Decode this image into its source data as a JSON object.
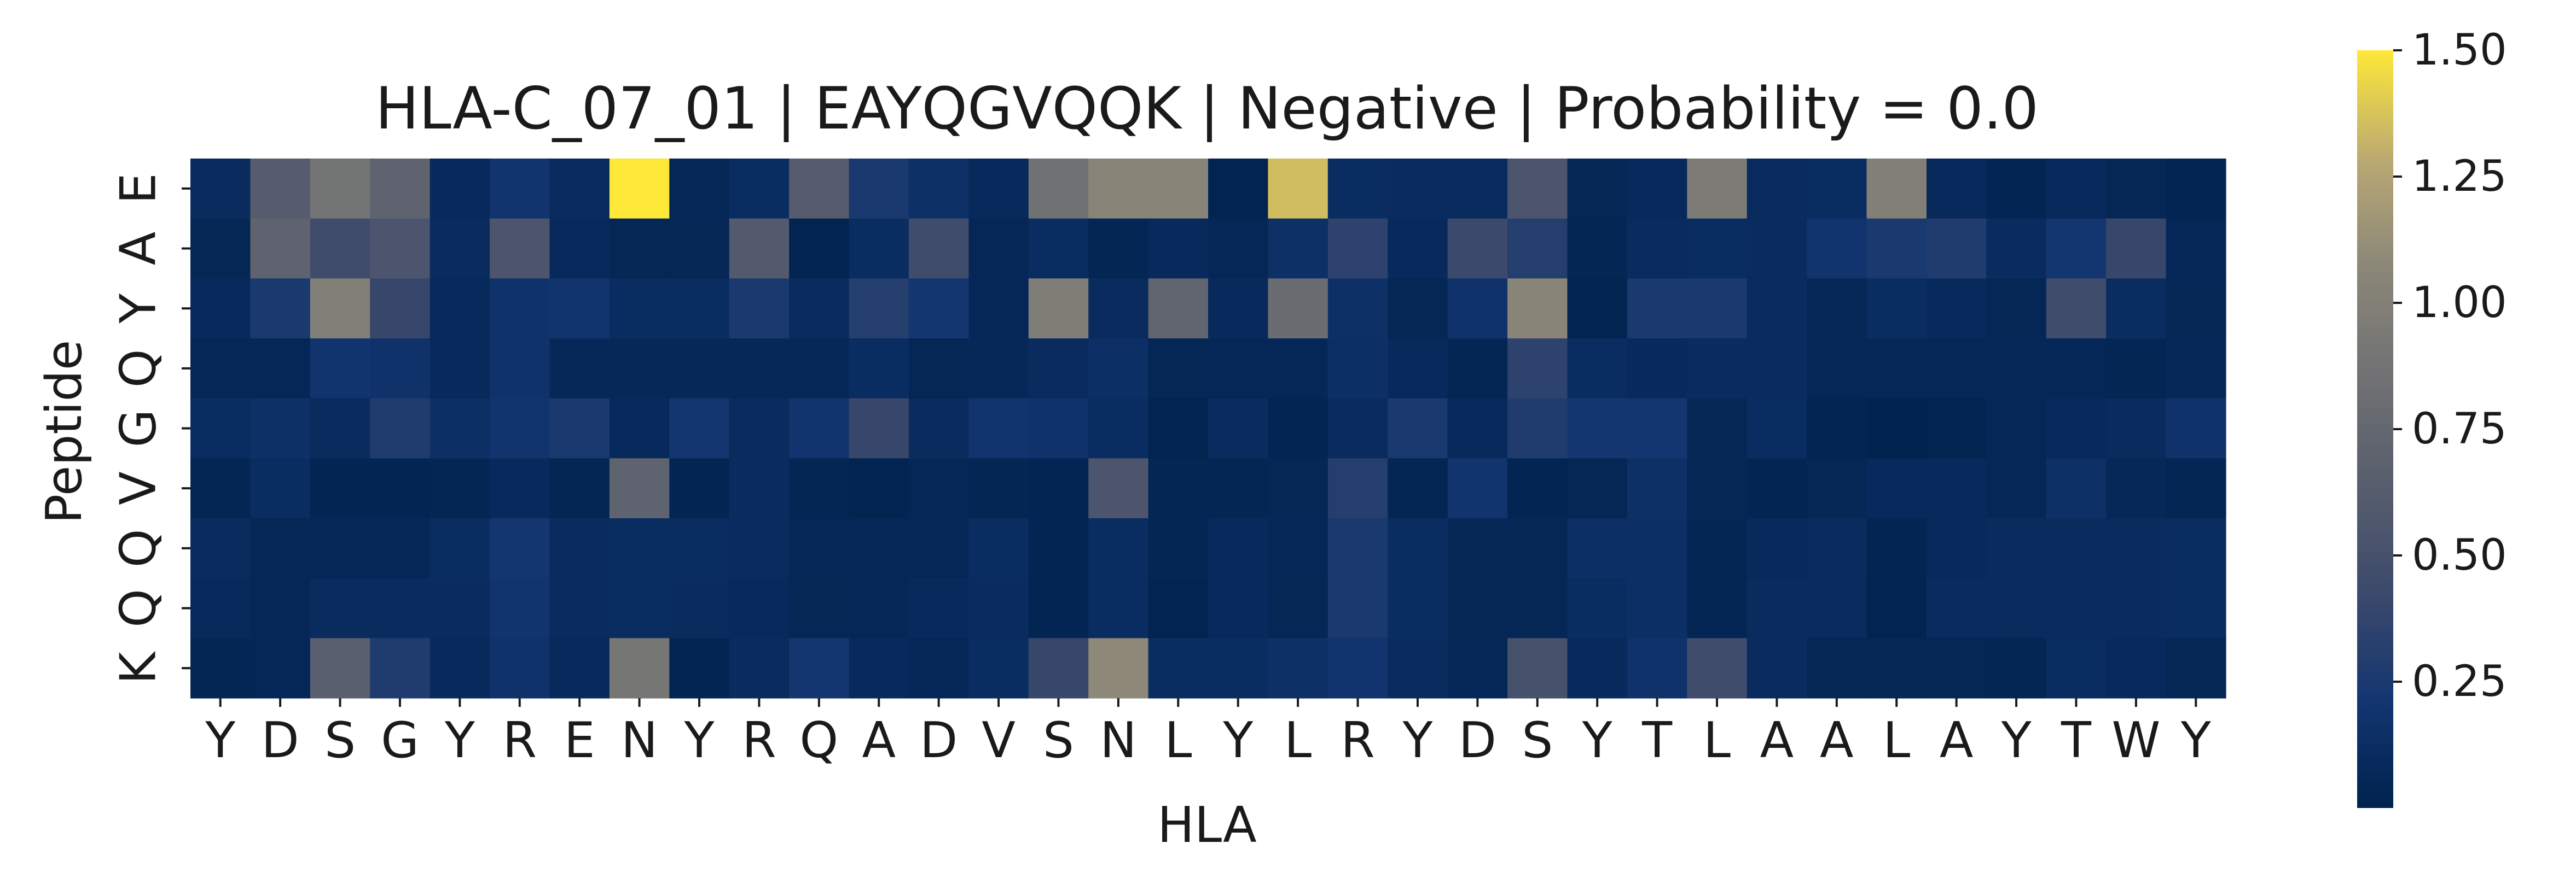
{
  "chart_data": {
    "type": "heatmap",
    "title": "HLA-C_07_01 | EAYQGVQQK | Negative | Probability = 0.0",
    "xlabel": "HLA",
    "ylabel": "Peptide",
    "x_categories": [
      "Y",
      "D",
      "S",
      "G",
      "Y",
      "R",
      "E",
      "N",
      "Y",
      "R",
      "Q",
      "A",
      "D",
      "V",
      "S",
      "N",
      "L",
      "Y",
      "L",
      "R",
      "Y",
      "D",
      "S",
      "Y",
      "T",
      "L",
      "A",
      "A",
      "L",
      "A",
      "Y",
      "T",
      "W",
      "Y"
    ],
    "y_categories": [
      "E",
      "A",
      "Y",
      "Q",
      "G",
      "V",
      "Q",
      "Q",
      "K"
    ],
    "values": [
      [
        0.1,
        0.62,
        0.88,
        0.7,
        0.08,
        0.2,
        0.1,
        1.5,
        0.06,
        0.12,
        0.62,
        0.25,
        0.15,
        0.08,
        0.85,
        1.05,
        1.05,
        0.02,
        1.35,
        0.12,
        0.1,
        0.1,
        0.55,
        0.05,
        0.08,
        0.95,
        0.1,
        0.12,
        1.0,
        0.08,
        0.03,
        0.08,
        0.05,
        0.03
      ],
      [
        0.05,
        0.7,
        0.45,
        0.55,
        0.1,
        0.55,
        0.08,
        0.05,
        0.05,
        0.6,
        0.02,
        0.12,
        0.45,
        0.06,
        0.12,
        0.04,
        0.08,
        0.06,
        0.15,
        0.35,
        0.08,
        0.42,
        0.3,
        0.04,
        0.1,
        0.12,
        0.1,
        0.2,
        0.25,
        0.28,
        0.1,
        0.22,
        0.4,
        0.06
      ],
      [
        0.08,
        0.25,
        1.0,
        0.4,
        0.08,
        0.18,
        0.2,
        0.12,
        0.12,
        0.25,
        0.1,
        0.3,
        0.22,
        0.06,
        0.98,
        0.1,
        0.72,
        0.08,
        0.8,
        0.15,
        0.05,
        0.18,
        1.05,
        0.02,
        0.25,
        0.25,
        0.1,
        0.06,
        0.12,
        0.08,
        0.05,
        0.45,
        0.12,
        0.05
      ],
      [
        0.06,
        0.06,
        0.2,
        0.18,
        0.08,
        0.18,
        0.07,
        0.07,
        0.07,
        0.07,
        0.07,
        0.12,
        0.05,
        0.07,
        0.1,
        0.14,
        0.05,
        0.06,
        0.06,
        0.14,
        0.08,
        0.04,
        0.35,
        0.12,
        0.08,
        0.1,
        0.1,
        0.06,
        0.06,
        0.06,
        0.06,
        0.06,
        0.04,
        0.07
      ],
      [
        0.12,
        0.15,
        0.1,
        0.28,
        0.14,
        0.2,
        0.25,
        0.08,
        0.22,
        0.1,
        0.2,
        0.4,
        0.1,
        0.2,
        0.18,
        0.12,
        0.02,
        0.1,
        0.03,
        0.1,
        0.25,
        0.08,
        0.28,
        0.22,
        0.22,
        0.05,
        0.12,
        0.03,
        0.01,
        0.02,
        0.06,
        0.08,
        0.1,
        0.18
      ],
      [
        0.04,
        0.12,
        0.03,
        0.03,
        0.04,
        0.08,
        0.04,
        0.7,
        0.03,
        0.1,
        0.04,
        0.02,
        0.06,
        0.04,
        0.03,
        0.55,
        0.04,
        0.04,
        0.05,
        0.3,
        0.04,
        0.2,
        0.03,
        0.05,
        0.15,
        0.05,
        0.03,
        0.05,
        0.08,
        0.08,
        0.06,
        0.15,
        0.07,
        0.04
      ],
      [
        0.1,
        0.06,
        0.06,
        0.06,
        0.12,
        0.22,
        0.1,
        0.12,
        0.12,
        0.1,
        0.06,
        0.06,
        0.06,
        0.12,
        0.03,
        0.12,
        0.04,
        0.08,
        0.06,
        0.25,
        0.12,
        0.05,
        0.05,
        0.14,
        0.14,
        0.04,
        0.08,
        0.1,
        0.03,
        0.08,
        0.1,
        0.1,
        0.1,
        0.12
      ],
      [
        0.08,
        0.06,
        0.1,
        0.1,
        0.1,
        0.2,
        0.1,
        0.12,
        0.1,
        0.08,
        0.05,
        0.06,
        0.08,
        0.1,
        0.03,
        0.12,
        0.02,
        0.08,
        0.05,
        0.25,
        0.12,
        0.05,
        0.05,
        0.12,
        0.14,
        0.04,
        0.1,
        0.1,
        0.02,
        0.1,
        0.1,
        0.1,
        0.1,
        0.12
      ],
      [
        0.04,
        0.06,
        0.65,
        0.28,
        0.08,
        0.18,
        0.08,
        0.9,
        0.03,
        0.1,
        0.22,
        0.08,
        0.06,
        0.12,
        0.4,
        1.08,
        0.12,
        0.12,
        0.15,
        0.2,
        0.1,
        0.06,
        0.5,
        0.08,
        0.18,
        0.45,
        0.1,
        0.05,
        0.05,
        0.05,
        0.04,
        0.12,
        0.08,
        0.05
      ]
    ],
    "vmin": 0.0,
    "vmax": 1.5,
    "colormap": "cividis",
    "colorbar_ticks": [
      "0.25",
      "0.50",
      "0.75",
      "1.00",
      "1.25",
      "1.50"
    ],
    "grid": false
  }
}
